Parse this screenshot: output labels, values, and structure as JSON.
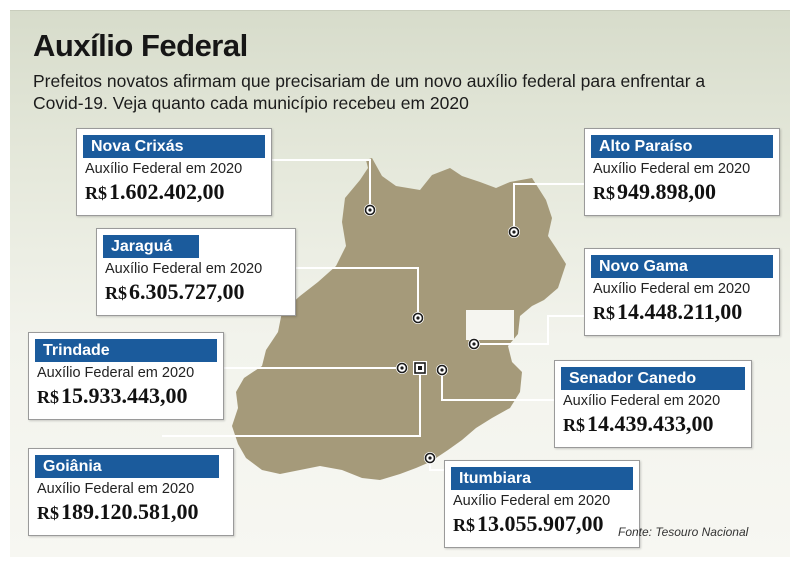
{
  "header": {
    "title": "Auxílio Federal",
    "subtitle": "Prefeitos novatos afirmam que precisariam de um novo auxílio federal para enfrentar a Covid-19. Veja quanto cada município recebeu em 2020"
  },
  "colors": {
    "map_fill": "#a59a7a",
    "box_blue": "#1b5b9c",
    "leader_line": "#ffffff"
  },
  "municipalities": [
    {
      "name": "Nova Crixás",
      "label": "Auxílio Federal em 2020",
      "currency": "R$",
      "amount": "1.602.402,00"
    },
    {
      "name": "Alto Paraíso",
      "label": "Auxílio Federal em 2020",
      "currency": "R$",
      "amount": "949.898,00"
    },
    {
      "name": "Jaraguá",
      "label": "Auxílio Federal em 2020",
      "currency": "R$",
      "amount": "6.305.727,00"
    },
    {
      "name": "Novo Gama",
      "label": "Auxílio Federal em 2020",
      "currency": "R$",
      "amount": "14.448.211,00"
    },
    {
      "name": "Trindade",
      "label": "Auxílio Federal em 2020",
      "currency": "R$",
      "amount": "15.933.443,00"
    },
    {
      "name": "Senador Canedo",
      "label": "Auxílio Federal em 2020",
      "currency": "R$",
      "amount": "14.439.433,00"
    },
    {
      "name": "Goiânia",
      "label": "Auxílio Federal em 2020",
      "currency": "R$",
      "amount": "189.120.581,00"
    },
    {
      "name": "Itumbiara",
      "label": "Auxílio Federal em 2020",
      "currency": "R$",
      "amount": "13.055.907,00"
    }
  ],
  "footer": {
    "source": "Fonte: Tesouro Nacional"
  }
}
